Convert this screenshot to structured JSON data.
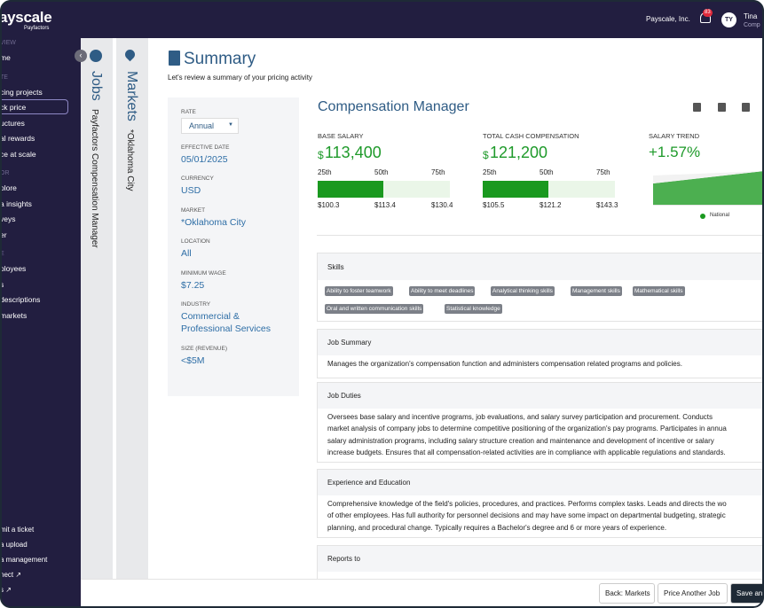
{
  "header": {
    "logo": "ayscale",
    "logo_sub": "Payfactors",
    "company": "Payscale, Inc.",
    "notifications": "83",
    "avatar": "TY",
    "user_name": "Tina",
    "user_role": "Comp"
  },
  "sidebar": {
    "sections": [
      {
        "title": "VIEW",
        "items": [
          "me"
        ]
      },
      {
        "title": "TE",
        "items": [
          "cing projects",
          "ck price",
          "uctures",
          "al rewards",
          "ce at scale"
        ]
      },
      {
        "title": "OR",
        "items": [
          "plore",
          "a insights",
          "veys",
          "er"
        ]
      },
      {
        "title": "E",
        "items": [
          "ployees",
          "s",
          "descriptions",
          "markets"
        ]
      }
    ],
    "bottom_links": [
      "mit a ticket",
      "a upload",
      "a management",
      "nect ↗",
      "s ↗"
    ]
  },
  "tabs": [
    {
      "title": "Jobs",
      "subtitle": "Payfactors Compensation Manager"
    },
    {
      "title": "Markets",
      "subtitle": "*Oklahoma City"
    }
  ],
  "summary": {
    "title": "Summary",
    "subtitle": "Let's review a summary of your pricing activity"
  },
  "filters": {
    "rate_label": "RATE",
    "rate_value": "Annual",
    "fields": [
      {
        "label": "EFFECTIVE DATE",
        "value": "05/01/2025"
      },
      {
        "label": "CURRENCY",
        "value": "USD"
      },
      {
        "label": "MARKET",
        "value": "*Oklahoma City"
      },
      {
        "label": "LOCATION",
        "value": "All"
      },
      {
        "label": "MINIMUM WAGE",
        "value": "$7.25"
      },
      {
        "label": "INDUSTRY",
        "value": "Commercial & Professional Services"
      },
      {
        "label": "SIZE (REVENUE)",
        "value": "<$5M"
      }
    ]
  },
  "job": {
    "title": "Compensation Manager",
    "pay": [
      {
        "label": "BASE SALARY",
        "currency": "$",
        "value": "113,400",
        "percentiles": [
          "25th",
          "50th",
          "75th"
        ],
        "amounts": [
          "$100.3",
          "$113.4",
          "$130.4"
        ]
      },
      {
        "label": "TOTAL CASH COMPENSATION",
        "currency": "$",
        "value": "121,200",
        "percentiles": [
          "25th",
          "50th",
          "75th"
        ],
        "amounts": [
          "$105.5",
          "$121.2",
          "$143.3"
        ]
      }
    ],
    "trend": {
      "label": "SALARY TREND",
      "value": "+1.57%",
      "legend": "National"
    }
  },
  "skills": {
    "title": "Skills",
    "tags": [
      "Ability to foster teamwork",
      "Ability to meet deadlines",
      "Analytical thinking skills",
      "Management skills",
      "Mathematical skills",
      "Oral and written communication skills",
      "Statistical knowledge"
    ]
  },
  "sections": [
    {
      "title": "Job Summary",
      "lines": [
        "Manages the organization's compensation function and administers compensation related programs and policies."
      ]
    },
    {
      "title": "Job Duties",
      "lines": [
        "Oversees base salary and incentive programs, job evaluations, and salary survey participation and procurement. Conducts",
        "market analysis of company jobs to determine competitive positioning of the organization's pay programs. Participates in annua",
        "salary administration programs, including salary structure creation and maintenance and development of incentive or salary",
        "increase budgets. Ensures that all compensation-related activities are in compliance with applicable regulations and standards."
      ]
    },
    {
      "title": "Experience and Education",
      "lines": [
        "Comprehensive knowledge of the field's policies, procedures, and practices. Performs complex tasks. Leads and directs the wo",
        "of other employees. Has full authority for personnel decisions and may have some impact on departmental budgeting, strategic",
        "planning, and procedural change. Typically requires a Bachelor's degree and 6 or more years of experience."
      ]
    },
    {
      "title": "Reports to"
    }
  ],
  "footer": {
    "buttons": [
      "Back: Markets",
      "Price Another Job",
      "Save an"
    ]
  }
}
